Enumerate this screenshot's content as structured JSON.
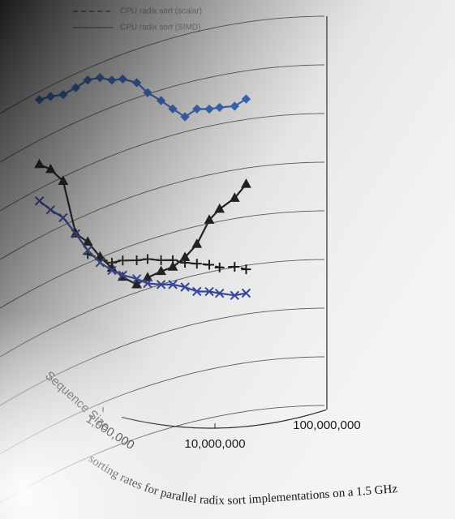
{
  "chart_data": {
    "type": "line",
    "caption": "sorting rates for parallel radix sort implementations on a 1.5 GHz",
    "x_label": "Sequence Size",
    "xscale": "log",
    "xlim": [
      120000,
      100000000
    ],
    "xticks": [
      {
        "value": 1000000,
        "label": "1,000,000"
      },
      {
        "value": 10000000,
        "label": "10,000,000"
      },
      {
        "value": 100000000,
        "label": "100,000,000"
      }
    ],
    "ylim": [
      0,
      8
    ],
    "grid": true,
    "x": [
      270000,
      340000,
      440000,
      570000,
      730000,
      940000,
      1200000,
      1500000,
      2000000,
      2500000,
      3300000,
      4200000,
      5400000,
      6900000,
      8900000,
      11000000,
      15000000,
      19000000
    ],
    "series": [
      {
        "color": "#2f63c9",
        "marker": "diamond",
        "dash": false,
        "values": [
          7.83,
          7.78,
          7.69,
          7.71,
          7.76,
          7.7,
          7.55,
          7.49,
          7.31,
          7.03,
          6.78,
          6.54,
          6.31,
          6.41,
          6.35,
          6.34,
          6.31,
          6.42
        ]
      },
      {
        "color": "#111111",
        "marker": "triangle",
        "dash": false,
        "values": [
          6.5,
          6.28,
          5.91,
          4.71,
          4.43,
          4.02,
          3.69,
          3.42,
          3.16,
          3.23,
          3.27,
          3.29,
          3.42,
          3.63,
          4.07,
          4.25,
          4.42,
          4.67
        ]
      },
      {
        "name": "CPU radix sort (scalar)",
        "color": "#111111",
        "marker": "plus",
        "dash": true,
        "values": [
          null,
          null,
          null,
          null,
          4.18,
          3.99,
          3.8,
          3.76,
          3.66,
          3.61,
          3.5,
          3.43,
          3.31,
          3.23,
          3.15,
          3.05,
          3.01,
          2.92
        ]
      },
      {
        "name": "CPU radix sort (SIMD)",
        "color": "#2a3f9e",
        "marker": "x",
        "dash": false,
        "values": [
          5.75,
          5.45,
          5.16,
          4.71,
          4.26,
          3.9,
          3.64,
          3.46,
          3.28,
          3.11,
          3.0,
          2.93,
          2.81,
          2.66,
          2.6,
          2.52,
          2.42,
          2.43
        ]
      }
    ]
  }
}
